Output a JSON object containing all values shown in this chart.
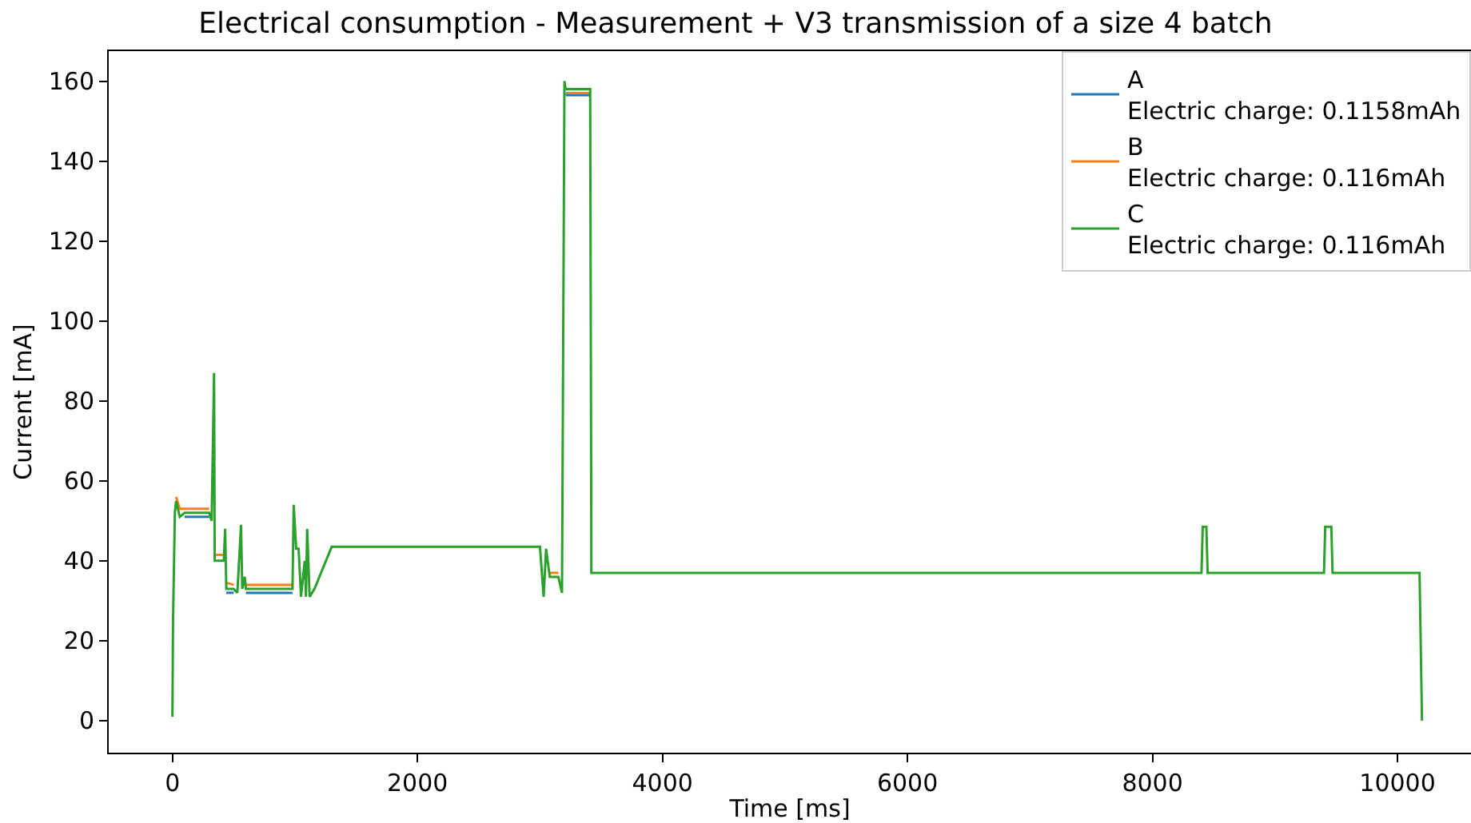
{
  "chart_data": {
    "type": "line",
    "title": "Electrical consumption - Measurement + V3 transmission of a size 4 batch",
    "xlabel": "Time [ms]",
    "ylabel": "Current [mA]",
    "xlim": [
      -520,
      10600
    ],
    "ylim": [
      -8,
      167.5
    ],
    "xticks": [
      0,
      2000,
      4000,
      6000,
      8000,
      10000
    ],
    "yticks": [
      0,
      20,
      40,
      60,
      80,
      100,
      120,
      140,
      160
    ],
    "legend": "top right",
    "series": [
      {
        "name": "A\nElectric charge: 0.1158mAh",
        "color": "#1f77b4",
        "x": [
          100,
          300,
          310,
          440,
          500,
          520,
          600,
          980,
          990,
          3210,
          3410
        ],
        "values": [
          51,
          51,
          null,
          32,
          32,
          null,
          32,
          32,
          null,
          156.5,
          156.5
        ]
      },
      {
        "name": "B\nElectric charge: 0.116mAh",
        "color": "#ff7f0e",
        "x": [
          30,
          60,
          100,
          300,
          310,
          350,
          420,
          425,
          440,
          500,
          520,
          600,
          980,
          990,
          3080,
          3150,
          3160,
          3210,
          3410
        ],
        "values": [
          56,
          53,
          53,
          53,
          null,
          41.5,
          41.5,
          null,
          34.5,
          34,
          null,
          34,
          34,
          null,
          37,
          37,
          null,
          157,
          157
        ]
      },
      {
        "name": "C\nElectric charge: 0.116mAh",
        "color": "#2ca02c",
        "x": [
          0,
          5,
          20,
          30,
          60,
          100,
          300,
          320,
          340,
          345,
          350,
          420,
          430,
          440,
          500,
          530,
          560,
          570,
          590,
          600,
          980,
          990,
          1010,
          1030,
          1050,
          1080,
          1090,
          1100,
          1120,
          1160,
          1300,
          3000,
          3030,
          3050,
          3080,
          3150,
          3180,
          3200,
          3210,
          3410,
          3420,
          8400,
          8410,
          8440,
          8450,
          9400,
          9410,
          9460,
          9470,
          10180,
          10200
        ],
        "values": [
          1,
          25,
          52,
          55,
          51,
          52,
          52,
          50,
          87,
          40,
          40,
          40,
          48,
          33,
          33,
          32,
          49,
          33,
          36,
          33,
          33,
          54,
          43,
          43,
          31,
          40,
          31,
          48,
          31,
          33,
          43.5,
          43.5,
          31,
          43,
          36,
          36,
          32,
          160,
          158,
          158,
          37,
          37,
          48.5,
          48.5,
          37,
          37,
          48.5,
          48.5,
          37,
          37,
          0
        ]
      }
    ]
  }
}
